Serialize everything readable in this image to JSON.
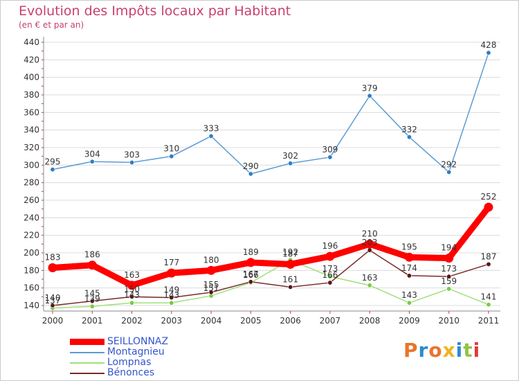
{
  "header": {
    "title": "Evolution des Impôts locaux par Habitant",
    "subtitle": "(en € et par an)"
  },
  "brand": {
    "text": "Proxiti",
    "colors": [
      "#e8762c",
      "#2b8bd4",
      "#e8762c",
      "#f0b323",
      "#2b8bd4",
      "#8fc641",
      "#e03a3a"
    ]
  },
  "chart_data": {
    "type": "line",
    "title": "Evolution des Impôts locaux par Habitant",
    "subtitle": "(en € et par an)",
    "xlabel": "",
    "ylabel": "",
    "x": [
      "2000",
      "2001",
      "2002",
      "2003",
      "2004",
      "2005",
      "2006",
      "2007",
      "2008",
      "2009",
      "2010",
      "2011"
    ],
    "ylim": [
      140,
      440
    ],
    "yticks": [
      140,
      160,
      180,
      200,
      220,
      240,
      260,
      280,
      300,
      320,
      340,
      360,
      380,
      400,
      420,
      440
    ],
    "grid": "horizontal",
    "legend_position": "bottom-left",
    "series": [
      {
        "name": "Montagnieu",
        "values": [
          295,
          304,
          303,
          310,
          333,
          290,
          302,
          309,
          379,
          332,
          292,
          428
        ],
        "color": "#5b9bd5",
        "marker": "#2e7ec3",
        "labels": [
          "295",
          "304",
          "303",
          "310",
          "333",
          "290",
          "302",
          "309",
          "379",
          "332",
          "292",
          "428"
        ]
      },
      {
        "name": "Lompnas",
        "values": [
          137,
          139,
          143,
          143,
          151,
          166,
          192,
          173,
          163,
          143,
          159,
          141
        ],
        "color": "#9fe07a",
        "marker": "#77cc44",
        "labels": [
          "137",
          "139",
          "143",
          "143",
          "151",
          "166",
          "192",
          "173",
          "163",
          "143",
          "159",
          "141"
        ]
      },
      {
        "name": "Bénonces",
        "values": [
          140,
          145,
          150,
          149,
          155,
          167,
          161,
          166,
          203,
          174,
          173,
          187
        ],
        "color": "#7a2a2a",
        "marker": "#5a1515",
        "labels": [
          "140",
          "145",
          "150",
          "149",
          "155",
          "167",
          "161",
          "166",
          "203",
          "174",
          "173",
          "187"
        ]
      },
      {
        "name": "SEILLONNAZ",
        "values": [
          183,
          186,
          163,
          177,
          180,
          189,
          187,
          196,
          210,
          195,
          194,
          252
        ],
        "color": "#ff0000",
        "marker": "#ff0000",
        "labels": [
          "183",
          "186",
          "163",
          "177",
          "180",
          "189",
          "187",
          "196",
          "210",
          "195",
          "194",
          "252"
        ]
      }
    ],
    "legend": [
      "SEILLONNAZ",
      "Montagnieu",
      "Lompnas",
      "Bénonces"
    ]
  }
}
